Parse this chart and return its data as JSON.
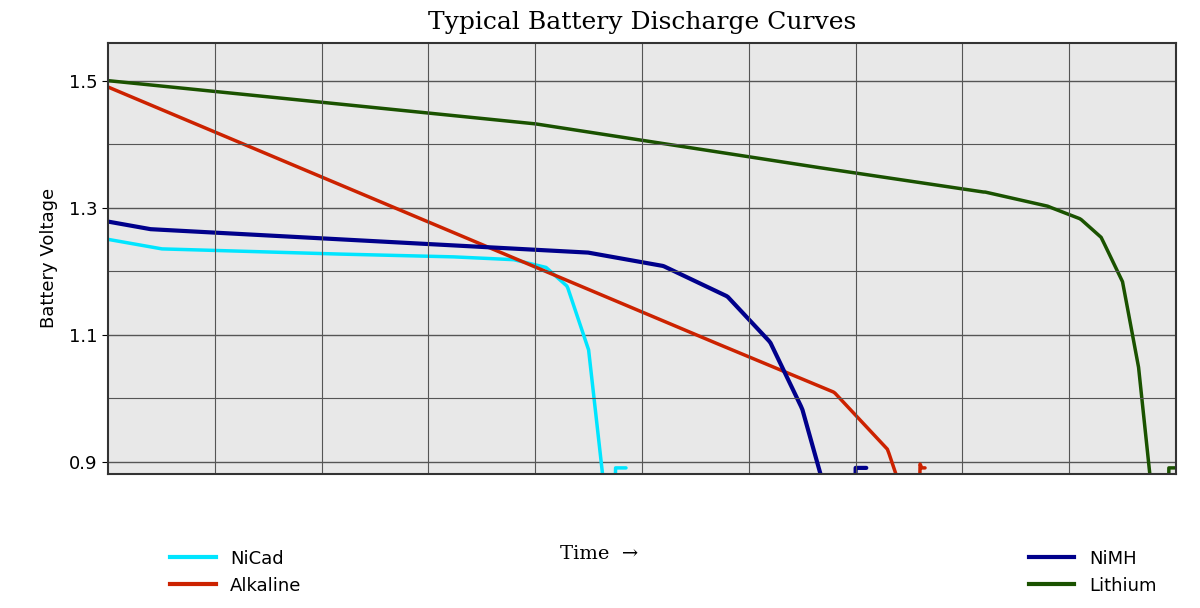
{
  "title": "Typical Battery Discharge Curves",
  "ylabel": "Battery Voltage",
  "ylim": [
    0.88,
    1.56
  ],
  "xlim": [
    0,
    10
  ],
  "yticks": [
    0.9,
    1.1,
    1.3,
    1.5
  ],
  "background_color": "#e8e8e8",
  "grid_color": "#555555",
  "curves": {
    "nicad": {
      "color": "#00e5ff",
      "linewidth": 2.5,
      "label": "NiCad"
    },
    "alkaline": {
      "color": "#cc2200",
      "linewidth": 2.5,
      "label": "Alkaline"
    },
    "nimh": {
      "color": "#00008b",
      "linewidth": 3.0,
      "label": "NiMH"
    },
    "lithium": {
      "color": "#1a5200",
      "linewidth": 2.5,
      "label": "Lithium"
    }
  },
  "legend_fontsize": 13,
  "title_fontsize": 18,
  "ylabel_fontsize": 13,
  "ytick_fontsize": 13
}
